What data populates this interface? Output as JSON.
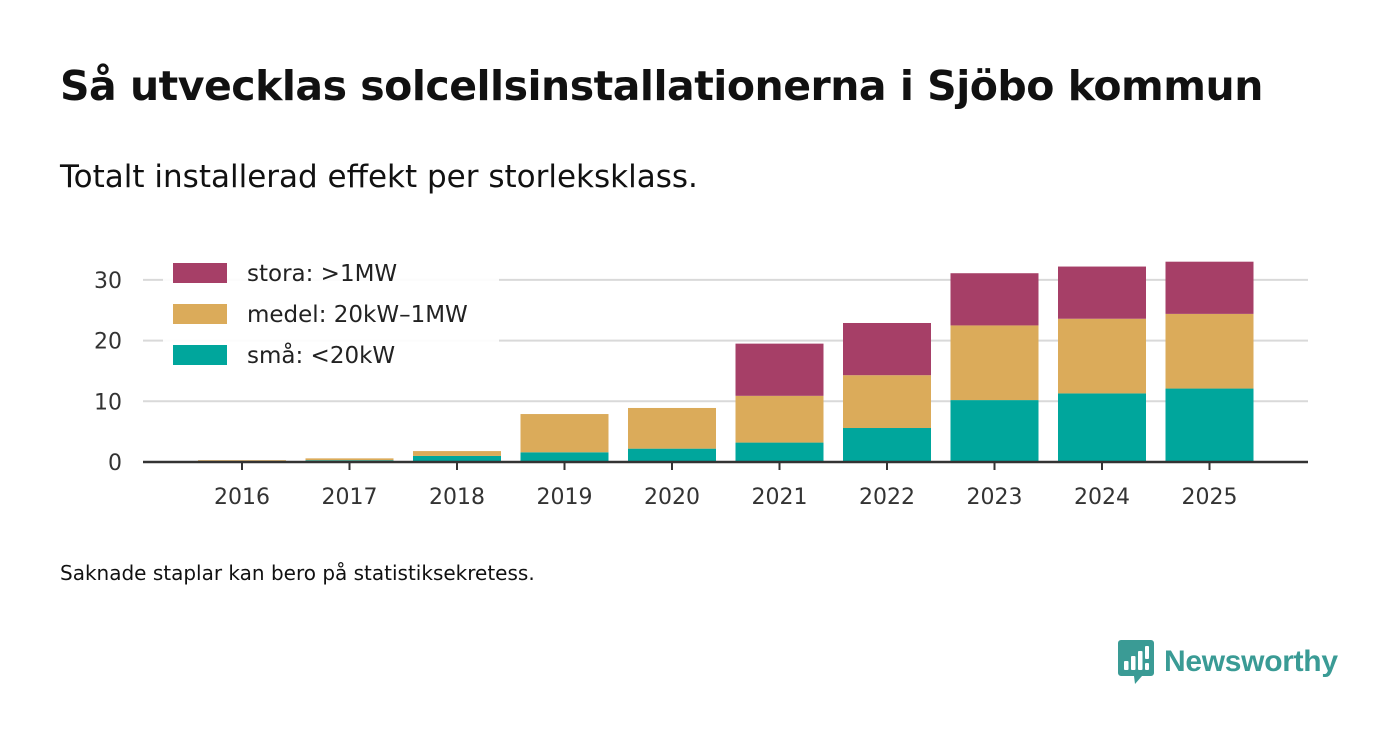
{
  "header": {
    "title": "Så utvecklas solcellsinstallationerna i Sjöbo kommun",
    "subtitle": "Totalt installerad effekt per storleksklass."
  },
  "footer": {
    "note": "Saknade staplar kan bero på statistiksekretess.",
    "brand": "Newsworthy",
    "brand_icon": "newsworthy-logo-icon"
  },
  "colors": {
    "stora": "#a63f67",
    "medel": "#dbab5a",
    "sma": "#00a69c",
    "grid": "#d9d9d9",
    "axis": "#333333",
    "brand": "#3a9b95"
  },
  "chart_data": {
    "type": "bar",
    "stacked": true,
    "title": "Så utvecklas solcellsinstallationerna i Sjöbo kommun",
    "subtitle": "Totalt installerad effekt per storleksklass.",
    "xlabel": "",
    "ylabel": "",
    "ylim": [
      0,
      33
    ],
    "yticks": [
      0,
      10,
      20,
      30
    ],
    "grid": true,
    "legend_position": "top-left",
    "categories": [
      "2016",
      "2017",
      "2018",
      "2019",
      "2020",
      "2021",
      "2022",
      "2023",
      "2024",
      "2025"
    ],
    "series": [
      {
        "name": "små: <20kW",
        "key": "sma",
        "values": [
          0.1,
          0.3,
          1.0,
          1.6,
          2.2,
          3.2,
          5.6,
          10.2,
          11.3,
          12.1
        ]
      },
      {
        "name": "medel: 20kW–1MW",
        "key": "medel",
        "values": [
          0.2,
          0.3,
          0.8,
          6.3,
          6.7,
          7.7,
          8.7,
          12.3,
          12.3,
          12.3
        ]
      },
      {
        "name": "stora: >1MW",
        "key": "stora",
        "values": [
          0,
          0,
          0,
          0,
          0,
          8.6,
          8.6,
          8.6,
          8.6,
          8.6
        ]
      }
    ]
  }
}
